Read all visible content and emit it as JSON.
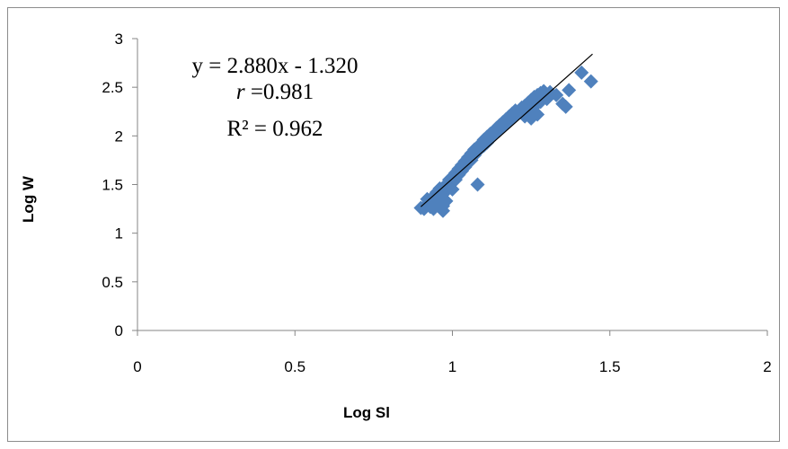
{
  "chart_data": {
    "type": "scatter",
    "xlabel": "Log Sl",
    "ylabel": "Log W",
    "xlim": [
      0,
      2
    ],
    "ylim": [
      0,
      3
    ],
    "x_ticks": [
      "0",
      "0.5",
      "1",
      "1.5",
      "2"
    ],
    "y_ticks": [
      "0",
      "0.5",
      "1",
      "1.5",
      "2",
      "2.5",
      "3"
    ],
    "grid": false,
    "legend": "none",
    "marker_color": "#4f81bd",
    "trendline_color": "#000000",
    "annotations": {
      "equation": "y = 2.880x - 1.320",
      "r_symbol": "r",
      "r_value": " =0.981",
      "r_squared": "R² = 0.962"
    },
    "trendline": {
      "slope": 2.88,
      "intercept": -1.32,
      "x_range": [
        0.9,
        1.445
      ]
    },
    "points": [
      [
        0.9,
        1.26
      ],
      [
        0.91,
        1.25
      ],
      [
        0.92,
        1.3
      ],
      [
        0.92,
        1.35
      ],
      [
        0.93,
        1.27
      ],
      [
        0.93,
        1.32
      ],
      [
        0.94,
        1.38
      ],
      [
        0.94,
        1.25
      ],
      [
        0.95,
        1.3
      ],
      [
        0.95,
        1.42
      ],
      [
        0.96,
        1.35
      ],
      [
        0.96,
        1.46
      ],
      [
        0.97,
        1.28
      ],
      [
        0.97,
        1.4
      ],
      [
        0.97,
        1.23
      ],
      [
        0.98,
        1.44
      ],
      [
        0.98,
        1.5
      ],
      [
        0.98,
        1.33
      ],
      [
        0.99,
        1.47
      ],
      [
        0.99,
        1.55
      ],
      [
        1.0,
        1.52
      ],
      [
        1.0,
        1.58
      ],
      [
        1.0,
        1.45
      ],
      [
        1.01,
        1.55
      ],
      [
        1.01,
        1.62
      ],
      [
        1.02,
        1.6
      ],
      [
        1.02,
        1.66
      ],
      [
        1.03,
        1.64
      ],
      [
        1.03,
        1.7
      ],
      [
        1.04,
        1.68
      ],
      [
        1.04,
        1.74
      ],
      [
        1.05,
        1.72
      ],
      [
        1.05,
        1.78
      ],
      [
        1.06,
        1.75
      ],
      [
        1.06,
        1.82
      ],
      [
        1.07,
        1.8
      ],
      [
        1.07,
        1.86
      ],
      [
        1.08,
        1.84
      ],
      [
        1.08,
        1.5
      ],
      [
        1.09,
        1.88
      ],
      [
        1.09,
        1.92
      ],
      [
        1.1,
        1.9
      ],
      [
        1.1,
        1.96
      ],
      [
        1.11,
        1.93
      ],
      [
        1.11,
        1.99
      ],
      [
        1.12,
        1.97
      ],
      [
        1.12,
        2.02
      ],
      [
        1.13,
        2.0
      ],
      [
        1.14,
        2.05
      ],
      [
        1.14,
        2.08
      ],
      [
        1.15,
        2.06
      ],
      [
        1.15,
        2.11
      ],
      [
        1.16,
        2.09
      ],
      [
        1.16,
        2.14
      ],
      [
        1.17,
        2.12
      ],
      [
        1.17,
        2.17
      ],
      [
        1.18,
        2.15
      ],
      [
        1.18,
        2.2
      ],
      [
        1.19,
        2.18
      ],
      [
        1.19,
        2.23
      ],
      [
        1.2,
        2.21
      ],
      [
        1.2,
        2.26
      ],
      [
        1.21,
        2.24
      ],
      [
        1.22,
        2.29
      ],
      [
        1.22,
        2.27
      ],
      [
        1.23,
        2.31
      ],
      [
        1.23,
        2.2
      ],
      [
        1.24,
        2.34
      ],
      [
        1.24,
        2.25
      ],
      [
        1.25,
        2.37
      ],
      [
        1.25,
        2.18
      ],
      [
        1.26,
        2.4
      ],
      [
        1.26,
        2.3
      ],
      [
        1.27,
        2.42
      ],
      [
        1.27,
        2.22
      ],
      [
        1.28,
        2.44
      ],
      [
        1.28,
        2.35
      ],
      [
        1.29,
        2.46
      ],
      [
        1.3,
        2.38
      ],
      [
        1.31,
        2.45
      ],
      [
        1.33,
        2.42
      ],
      [
        1.35,
        2.33
      ],
      [
        1.36,
        2.3
      ],
      [
        1.37,
        2.47
      ],
      [
        1.41,
        2.65
      ],
      [
        1.44,
        2.56
      ]
    ]
  }
}
